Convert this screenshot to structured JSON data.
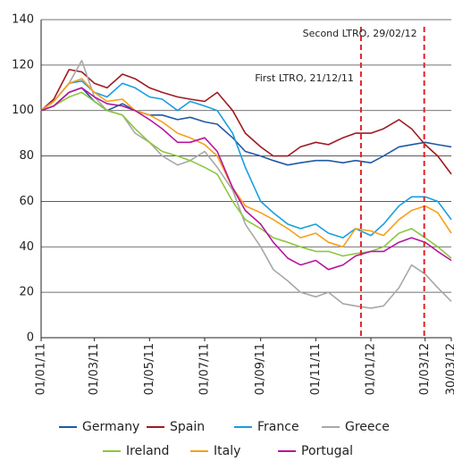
{
  "chart_data": {
    "type": "line",
    "x": [
      "2011-01-01",
      "2011-01-15",
      "2011-02-01",
      "2011-02-15",
      "2011-03-01",
      "2011-03-15",
      "2011-04-01",
      "2011-04-15",
      "2011-05-01",
      "2011-05-15",
      "2011-06-01",
      "2011-06-15",
      "2011-07-01",
      "2011-07-15",
      "2011-08-01",
      "2011-08-15",
      "2011-09-01",
      "2011-09-15",
      "2011-10-01",
      "2011-10-15",
      "2011-11-01",
      "2011-11-15",
      "2011-12-01",
      "2011-12-15",
      "2012-01-01",
      "2012-01-15",
      "2012-02-01",
      "2012-02-15",
      "2012-03-01",
      "2012-03-15",
      "2012-03-30"
    ],
    "series": [
      {
        "name": "Germany",
        "color": "#1f5aa6",
        "values": [
          100,
          102,
          108,
          110,
          104,
          100,
          103,
          100,
          98,
          98,
          96,
          97,
          95,
          94,
          88,
          82,
          80,
          78,
          76,
          77,
          78,
          78,
          77,
          78,
          77,
          80,
          84,
          85,
          86,
          85,
          84
        ]
      },
      {
        "name": "Spain",
        "color": "#9e1b20",
        "values": [
          100,
          105,
          118,
          117,
          112,
          110,
          116,
          114,
          110,
          108,
          106,
          105,
          104,
          108,
          100,
          90,
          84,
          80,
          80,
          84,
          86,
          85,
          88,
          90,
          90,
          92,
          96,
          92,
          85,
          80,
          72
        ]
      },
      {
        "name": "France",
        "color": "#1a9ee0",
        "values": [
          100,
          104,
          112,
          113,
          108,
          106,
          112,
          110,
          106,
          105,
          100,
          104,
          102,
          100,
          90,
          75,
          60,
          55,
          50,
          48,
          50,
          46,
          44,
          48,
          45,
          50,
          58,
          62,
          62,
          60,
          52
        ]
      },
      {
        "name": "Greece",
        "color": "#a8a8a8",
        "values": [
          100,
          104,
          112,
          122,
          106,
          100,
          98,
          90,
          86,
          80,
          76,
          78,
          82,
          75,
          65,
          50,
          40,
          30,
          25,
          20,
          18,
          20,
          15,
          14,
          13,
          14,
          22,
          32,
          28,
          22,
          16
        ]
      },
      {
        "name": "Ireland",
        "color": "#8dc63f",
        "values": [
          100,
          102,
          106,
          108,
          104,
          100,
          98,
          92,
          86,
          82,
          80,
          78,
          75,
          72,
          60,
          52,
          48,
          44,
          42,
          40,
          38,
          38,
          36,
          37,
          38,
          40,
          46,
          48,
          44,
          40,
          35
        ]
      },
      {
        "name": "Italy",
        "color": "#f6a01a",
        "values": [
          100,
          104,
          112,
          114,
          108,
          104,
          105,
          100,
          98,
          95,
          90,
          88,
          85,
          80,
          66,
          58,
          55,
          52,
          48,
          44,
          46,
          42,
          40,
          48,
          47,
          45,
          52,
          56,
          58,
          55,
          46
        ]
      },
      {
        "name": "Portugal",
        "color": "#b5169b",
        "values": [
          100,
          102,
          108,
          110,
          106,
          103,
          102,
          100,
          96,
          92,
          86,
          86,
          88,
          82,
          66,
          56,
          50,
          42,
          35,
          32,
          34,
          30,
          32,
          36,
          38,
          38,
          42,
          44,
          42,
          38,
          34
        ]
      }
    ],
    "xlim": [
      "2011-01-01",
      "2012-03-30"
    ],
    "xticks": [
      {
        "value": "2011-01-01",
        "label": "01/01/11"
      },
      {
        "value": "2011-03-01",
        "label": "01/03/11"
      },
      {
        "value": "2011-05-01",
        "label": "01/05/11"
      },
      {
        "value": "2011-07-01",
        "label": "01/07/11"
      },
      {
        "value": "2011-09-01",
        "label": "01/09/11"
      },
      {
        "value": "2011-11-01",
        "label": "01/11/11"
      },
      {
        "value": "2012-01-01",
        "label": "01/01/12"
      },
      {
        "value": "2012-03-01",
        "label": "01/03/12"
      },
      {
        "value": "2012-03-30",
        "label": "30/03/12"
      }
    ],
    "ylim": [
      0,
      140
    ],
    "yticks": [
      0,
      20,
      40,
      60,
      80,
      100,
      120,
      140
    ],
    "grid": true,
    "legend": "bottom",
    "annotations": [
      {
        "x": "2011-12-21",
        "label": "First LTRO, 21/12/11",
        "color": "#e0222a"
      },
      {
        "x": "2012-02-29",
        "label": "Second LTRO, 29/02/12",
        "color": "#e0222a"
      }
    ]
  }
}
